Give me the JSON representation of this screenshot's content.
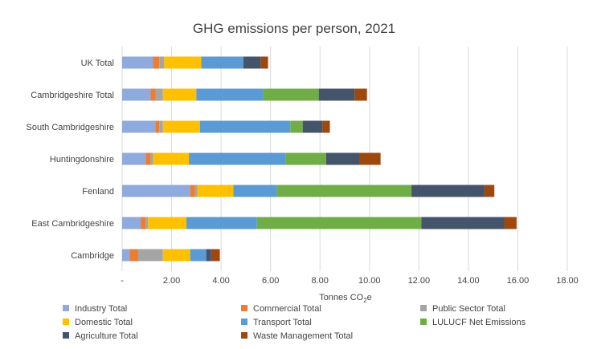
{
  "chart_data": {
    "type": "bar",
    "orientation": "horizontal",
    "stacked": true,
    "title": "GHG emissions per person, 2021",
    "xlabel_main": "Tonnes CO",
    "xlabel_sub": "2",
    "xlabel_end": "e",
    "ylabel": "",
    "xlim": [
      0,
      18
    ],
    "xticks": [
      0,
      2,
      4,
      6,
      8,
      10,
      12,
      14,
      16,
      18
    ],
    "xtick_labels": [
      "-",
      "2.00",
      "4.00",
      "6.00",
      "8.00",
      "10.00",
      "12.00",
      "14.00",
      "16.00",
      "18.00"
    ],
    "grid": "vertical",
    "legend_position": "bottom",
    "categories": [
      "UK Total",
      "Cambridgeshire Total",
      "South Cambridgeshire",
      "Huntingdonshire",
      "Fenland",
      "East Cambridgeshire",
      "Cambridge"
    ],
    "series": [
      {
        "name": "Industry Total",
        "color": "#8faadc",
        "values": [
          1.25,
          1.15,
          1.35,
          0.95,
          2.75,
          0.75,
          0.3
        ]
      },
      {
        "name": "Commercial Total",
        "color": "#ed7d31",
        "values": [
          0.25,
          0.2,
          0.15,
          0.2,
          0.2,
          0.2,
          0.35
        ]
      },
      {
        "name": "Public Sector Total",
        "color": "#a5a5a5",
        "values": [
          0.2,
          0.3,
          0.15,
          0.1,
          0.1,
          0.1,
          1.0
        ]
      },
      {
        "name": "Domestic Total",
        "color": "#ffc000",
        "values": [
          1.5,
          1.35,
          1.5,
          1.45,
          1.45,
          1.55,
          1.1
        ]
      },
      {
        "name": "Transport Total",
        "color": "#5b9bd5",
        "values": [
          1.7,
          2.7,
          3.65,
          3.9,
          1.75,
          2.85,
          0.65
        ]
      },
      {
        "name": "LULUCF Net Emissions",
        "color": "#70ad47",
        "values": [
          0,
          2.25,
          0.5,
          1.65,
          5.45,
          6.65,
          0
        ]
      },
      {
        "name": "Agriculture Total",
        "color": "#44546a",
        "values": [
          0.7,
          1.45,
          0.8,
          1.35,
          2.95,
          3.35,
          0.2
        ]
      },
      {
        "name": "Waste Management Total",
        "color": "#9e480e",
        "values": [
          0.3,
          0.5,
          0.3,
          0.85,
          0.4,
          0.5,
          0.35
        ]
      }
    ]
  }
}
